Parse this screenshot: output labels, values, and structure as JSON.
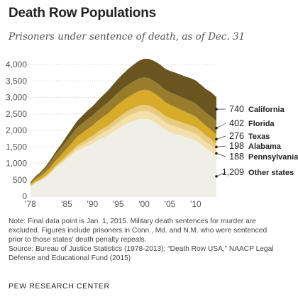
{
  "title": "Death Row Populations",
  "subtitle": "Prisoners under sentence of death, as of Dec. 31",
  "note_lines": [
    "Note: Final data point is Jan. 1, 2015. Military death sentences for murder are",
    "excluded. Figures include prisoners in Conn., Md. and N.M. who were sentenced",
    "prior to those states' death penalty repeals.",
    "Source: Bureau of Justice Statistics (1978-2013); “Death Row USA,” NAACP Legal",
    "Defense and Educational Fund (2015)"
  ],
  "org": "PEW RESEARCH CENTER",
  "chart_data": {
    "type": "area",
    "stacked": true,
    "x": [
      1978,
      1979,
      1980,
      1981,
      1982,
      1983,
      1984,
      1985,
      1986,
      1987,
      1988,
      1989,
      1990,
      1991,
      1992,
      1993,
      1994,
      1995,
      1996,
      1997,
      1998,
      1999,
      2000,
      2001,
      2002,
      2003,
      2004,
      2005,
      2006,
      2007,
      2008,
      2009,
      2010,
      2011,
      2012,
      2013,
      2014
    ],
    "x_tick_labels": [
      "'78",
      "'85",
      "'90",
      "'95",
      "'00",
      "'05",
      "'10"
    ],
    "x_tick_values": [
      1978,
      1985,
      1990,
      1995,
      2000,
      2005,
      2010
    ],
    "ylim": [
      0,
      4000
    ],
    "y_ticks": [
      0,
      500,
      1000,
      1500,
      2000,
      2500,
      3000,
      3500,
      4000
    ],
    "y_tick_labels": [
      "0",
      "500",
      "1,000",
      "1,500",
      "2,000",
      "2,500",
      "3,000",
      "3,500",
      "4,000"
    ],
    "grid": true,
    "series": [
      {
        "name": "Other states",
        "color": "#f0efe6",
        "end_label": "1,209",
        "values": [
          300,
          410,
          480,
          580,
          720,
          880,
          1000,
          1130,
          1250,
          1380,
          1450,
          1530,
          1600,
          1700,
          1780,
          1850,
          1950,
          2050,
          2150,
          2230,
          2290,
          2340,
          2360,
          2330,
          2250,
          2150,
          2030,
          1950,
          1900,
          1850,
          1800,
          1750,
          1700,
          1580,
          1450,
          1350,
          1209
        ]
      },
      {
        "name": "Pennsylvania",
        "color": "#f2dfaa",
        "end_label": "188",
        "values": [
          8,
          12,
          15,
          18,
          22,
          28,
          35,
          45,
          60,
          75,
          95,
          110,
          120,
          135,
          150,
          165,
          180,
          195,
          205,
          215,
          225,
          230,
          235,
          240,
          240,
          235,
          230,
          225,
          220,
          215,
          210,
          205,
          200,
          198,
          195,
          192,
          188
        ]
      },
      {
        "name": "Alabama",
        "color": "#e8cb80",
        "end_label": "198",
        "values": [
          15,
          20,
          25,
          30,
          38,
          45,
          55,
          65,
          75,
          85,
          95,
          105,
          115,
          120,
          125,
          130,
          135,
          145,
          150,
          160,
          170,
          180,
          185,
          185,
          185,
          190,
          190,
          195,
          195,
          200,
          200,
          200,
          198,
          198,
          198,
          198,
          198
        ]
      },
      {
        "name": "Texas",
        "color": "#d7ac2a",
        "end_label": "276",
        "values": [
          50,
          70,
          90,
          110,
          130,
          150,
          170,
          200,
          230,
          260,
          280,
          290,
          310,
          330,
          350,
          370,
          390,
          405,
          410,
          420,
          430,
          445,
          455,
          455,
          450,
          440,
          420,
          410,
          395,
          370,
          350,
          340,
          315,
          300,
          290,
          280,
          276
        ]
      },
      {
        "name": "Florida",
        "color": "#9a7d2c",
        "end_label": "402",
        "values": [
          45,
          70,
          95,
          125,
          160,
          195,
          220,
          245,
          265,
          280,
          290,
          300,
          305,
          315,
          325,
          335,
          345,
          355,
          365,
          370,
          375,
          380,
          375,
          370,
          365,
          365,
          370,
          375,
          385,
          390,
          395,
          400,
          400,
          400,
          400,
          400,
          402
        ]
      },
      {
        "name": "California",
        "color": "#6a5420",
        "end_label": "740",
        "values": [
          17,
          30,
          40,
          55,
          70,
          80,
          110,
          140,
          170,
          200,
          230,
          260,
          280,
          300,
          330,
          360,
          390,
          420,
          450,
          480,
          510,
          540,
          565,
          590,
          610,
          630,
          640,
          650,
          660,
          670,
          680,
          690,
          700,
          710,
          720,
          735,
          740
        ]
      }
    ]
  }
}
